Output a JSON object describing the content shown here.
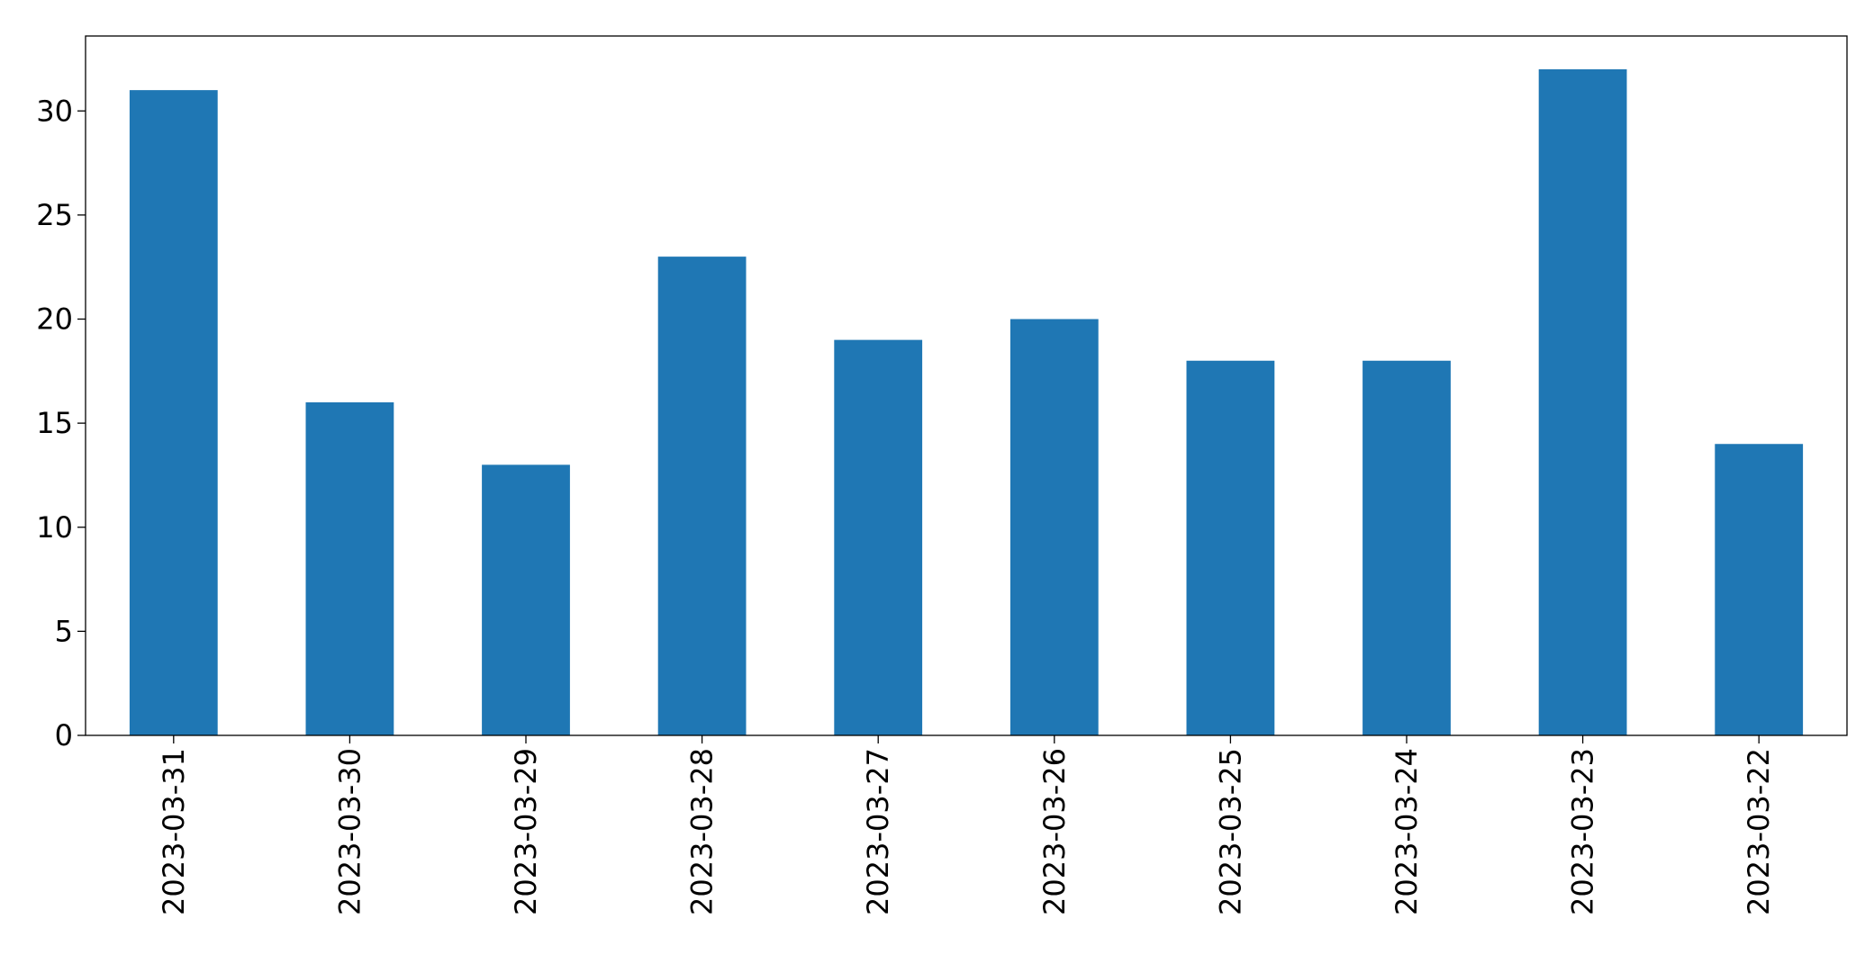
{
  "chart_data": {
    "type": "bar",
    "categories": [
      "2023-03-31",
      "2023-03-30",
      "2023-03-29",
      "2023-03-28",
      "2023-03-27",
      "2023-03-26",
      "2023-03-25",
      "2023-03-24",
      "2023-03-23",
      "2023-03-22"
    ],
    "values": [
      31,
      16,
      13,
      23,
      19,
      20,
      18,
      18,
      32,
      14
    ],
    "color": "#1f77b4",
    "ylim": [
      0,
      33.6
    ],
    "yticks": [
      0,
      5,
      10,
      15,
      20,
      25,
      30
    ],
    "grid": false
  }
}
